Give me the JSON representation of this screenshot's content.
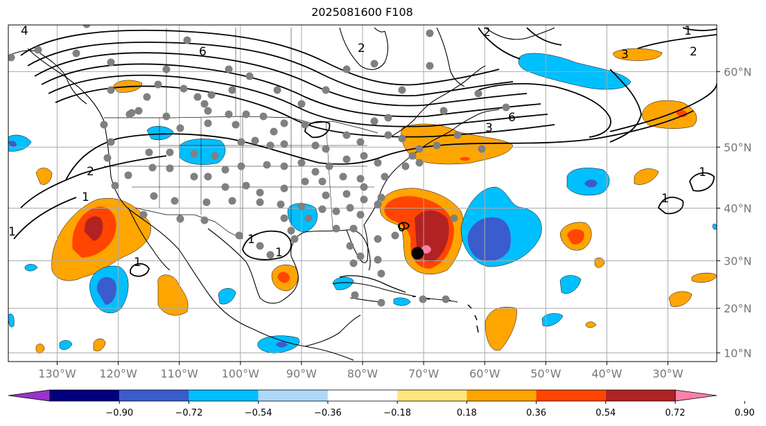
{
  "title": "2025081600 F108",
  "map": {
    "extent": {
      "lon_min": -138,
      "lon_max": -22,
      "lat_min": 8,
      "lat_max": 65
    },
    "lat_labels": [
      "10°N",
      "20°N",
      "30°N",
      "40°N",
      "50°N",
      "60°N"
    ],
    "lat_values": [
      10,
      20,
      30,
      40,
      50,
      60
    ],
    "lon_labels": [
      "130°W",
      "120°W",
      "110°W",
      "100°W",
      "90°W",
      "80°W",
      "70°W",
      "60°W",
      "50°W",
      "40°W",
      "30°W"
    ],
    "lon_values": [
      -130,
      -120,
      -110,
      -100,
      -90,
      -80,
      -70,
      -60,
      -50,
      -40,
      -30
    ],
    "contour_labels": [
      "6",
      "4",
      "2",
      "1",
      "1",
      "1",
      "1",
      "1",
      "0",
      "3",
      "3",
      "2",
      "2",
      "1",
      "2",
      "1",
      "6",
      "1"
    ],
    "storm_marker": {
      "lon": -71,
      "lat": 31.5
    }
  },
  "colorbar": {
    "colors": [
      "#9933cc",
      "#000080",
      "#3a5ccc",
      "#00bfff",
      "#add8f7",
      "#ffffff",
      "#ffe680",
      "#ffa500",
      "#ff4500",
      "#b22222",
      "#ff80a8"
    ],
    "tick_labels": [
      "−0.90",
      "−0.72",
      "−0.54",
      "−0.36",
      "−0.18",
      "0.18",
      "0.36",
      "0.54",
      "0.72",
      "0.90"
    ],
    "levels": [
      -0.9,
      -0.72,
      -0.54,
      -0.36,
      -0.18,
      0.18,
      0.36,
      0.54,
      0.72,
      0.9
    ]
  }
}
